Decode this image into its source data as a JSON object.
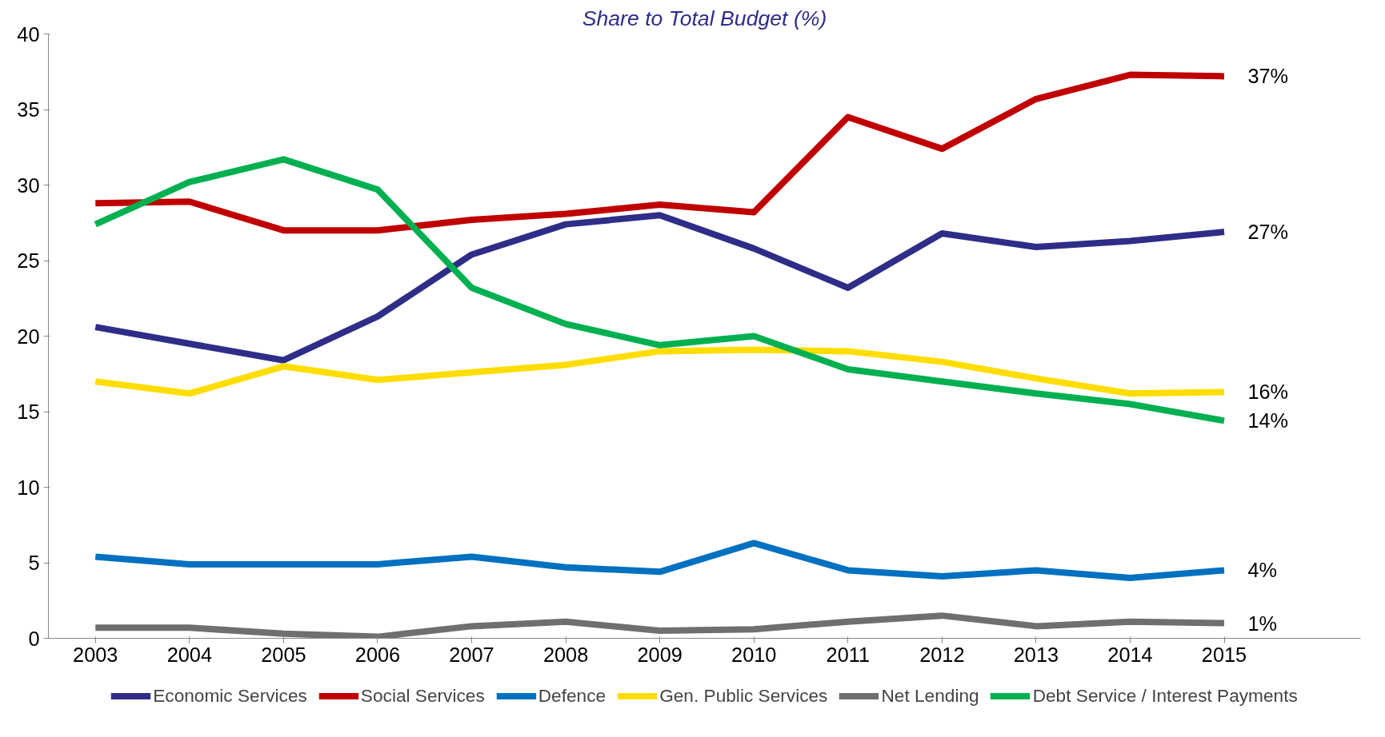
{
  "chart_data": {
    "type": "line",
    "title": "Share to Total Budget (%)",
    "categories": [
      "2003",
      "2004",
      "2005",
      "2006",
      "2007",
      "2008",
      "2009",
      "2010",
      "2011",
      "2012",
      "2013",
      "2014",
      "2015"
    ],
    "series": [
      {
        "name": "Economic Services",
        "color": "#2e2d88",
        "values": [
          20.6,
          19.5,
          18.4,
          21.3,
          25.4,
          27.4,
          28.0,
          25.8,
          23.2,
          26.8,
          25.9,
          26.3,
          26.9
        ]
      },
      {
        "name": "Social Services",
        "color": "#c00000",
        "values": [
          28.8,
          28.9,
          27.0,
          27.0,
          27.7,
          28.1,
          28.7,
          28.2,
          34.5,
          32.4,
          35.7,
          37.3,
          37.2
        ]
      },
      {
        "name": "Defence",
        "color": "#0070c0",
        "values": [
          5.4,
          4.9,
          4.9,
          4.9,
          5.4,
          4.7,
          4.4,
          6.3,
          4.5,
          4.1,
          4.5,
          4.0,
          4.5
        ]
      },
      {
        "name": "Gen. Public Services",
        "color": "#ffdd00",
        "values": [
          17.0,
          16.2,
          18.0,
          17.1,
          17.6,
          18.1,
          19.0,
          19.1,
          19.0,
          18.3,
          17.2,
          16.2,
          16.3
        ]
      },
      {
        "name": "Net Lending",
        "color": "#6f6f6f",
        "values": [
          0.7,
          0.7,
          0.3,
          0.1,
          0.8,
          1.1,
          0.5,
          0.6,
          1.1,
          1.5,
          0.8,
          1.1,
          1.0
        ]
      },
      {
        "name": "Debt Service / Interest Payments",
        "color": "#00b050",
        "values": [
          27.4,
          30.2,
          31.7,
          29.7,
          23.2,
          20.8,
          19.4,
          20.0,
          17.8,
          17.0,
          16.2,
          15.5,
          14.4
        ]
      }
    ],
    "annotations": [
      {
        "text": "37%",
        "x": "2015",
        "y": 37.2
      },
      {
        "text": "27%",
        "x": "2015",
        "y": 26.9
      },
      {
        "text": "16%",
        "x": "2015",
        "y": 16.3
      },
      {
        "text": "14%",
        "x": "2015",
        "y": 14.4
      },
      {
        "text": "4%",
        "x": "2015",
        "y": 4.5
      },
      {
        "text": "1%",
        "x": "2015",
        "y": 1.0
      }
    ],
    "ylim": [
      0,
      40
    ],
    "yticks": [
      0,
      5,
      10,
      15,
      20,
      25,
      30,
      35,
      40
    ],
    "grid": false,
    "legend": "bottom",
    "marker": "none",
    "line_style": "solid"
  }
}
